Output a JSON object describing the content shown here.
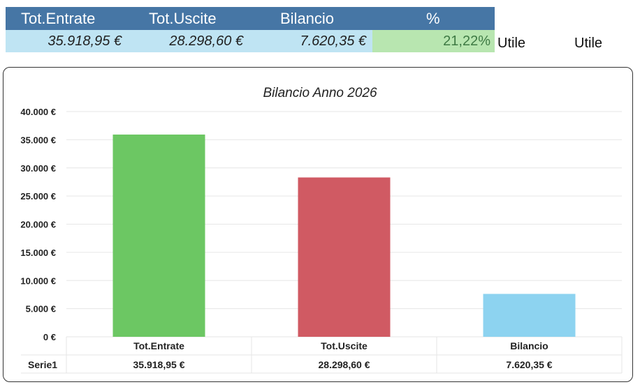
{
  "summary": {
    "headers": [
      "Tot.Entrate",
      "Tot.Uscite",
      "Bilancio",
      "%"
    ],
    "values": [
      "35.918,95 €",
      "28.298,60 €",
      "7.620,35 €"
    ],
    "percent": "21,22%",
    "status_1": "Utile",
    "status_2": "Utile"
  },
  "chart_data": {
    "type": "bar",
    "title": "Bilancio Anno 2026",
    "categories": [
      "Tot.Entrate",
      "Tot.Uscite",
      "Bilancio"
    ],
    "series": [
      {
        "name": "Serie1",
        "values": [
          35918.95,
          28298.6,
          7620.35
        ]
      }
    ],
    "value_labels": [
      "35.918,95 €",
      "28.298,60 €",
      "7.620,35 €"
    ],
    "colors": [
      "#6cc763",
      "#d05a63",
      "#8dd3f0"
    ],
    "ylim": [
      0,
      40000
    ],
    "yticks": [
      "0 €",
      "5.000 €",
      "10.000 €",
      "15.000 €",
      "20.000 €",
      "25.000 €",
      "30.000 €",
      "35.000 €",
      "40.000 €"
    ],
    "yticks_values": [
      0,
      5000,
      10000,
      15000,
      20000,
      25000,
      30000,
      35000,
      40000
    ],
    "grid": true,
    "data_table": true
  }
}
